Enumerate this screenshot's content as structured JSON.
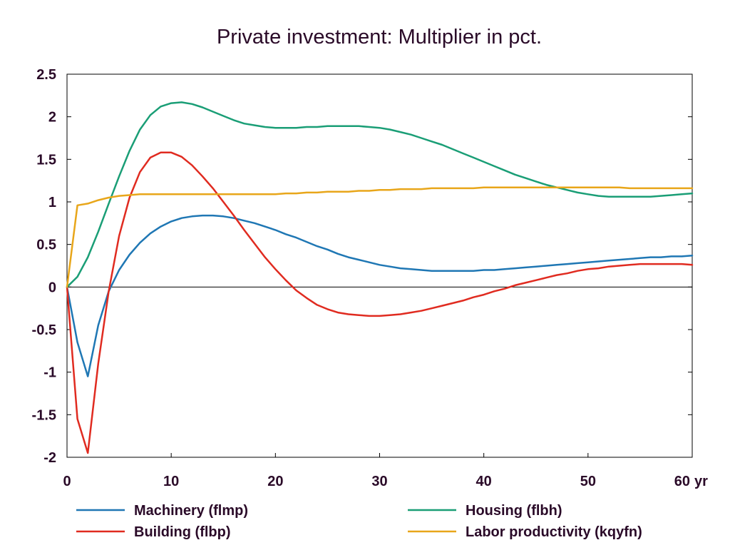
{
  "chart_data": {
    "type": "line",
    "title": "Private investment: Multiplier in pct.",
    "x_unit_label": "yr",
    "xlim": [
      0,
      60
    ],
    "ylim": [
      -2,
      2.5
    ],
    "x_ticks": [
      "0",
      "10",
      "20",
      "30",
      "40",
      "50",
      "60"
    ],
    "y_ticks": [
      "2.5",
      "2",
      "1.5",
      "1",
      "0.5",
      "0",
      "-0.5",
      "-1",
      "-1.5",
      "-2"
    ],
    "zero_line": true,
    "grid": false,
    "legend_position": "bottom",
    "x": [
      0,
      1,
      2,
      3,
      4,
      5,
      6,
      7,
      8,
      9,
      10,
      11,
      12,
      13,
      14,
      15,
      16,
      17,
      18,
      19,
      20,
      21,
      22,
      23,
      24,
      25,
      26,
      27,
      28,
      29,
      30,
      31,
      32,
      33,
      34,
      35,
      36,
      37,
      38,
      39,
      40,
      41,
      42,
      43,
      44,
      45,
      46,
      47,
      48,
      49,
      50,
      51,
      52,
      53,
      54,
      55,
      56,
      57,
      58,
      59,
      60
    ],
    "series": [
      {
        "name": "Machinery (flmp)",
        "color": "#1f77b4",
        "values": [
          0,
          -0.65,
          -1.05,
          -0.45,
          -0.05,
          0.2,
          0.38,
          0.52,
          0.63,
          0.71,
          0.77,
          0.81,
          0.83,
          0.84,
          0.84,
          0.83,
          0.81,
          0.78,
          0.75,
          0.71,
          0.67,
          0.62,
          0.58,
          0.53,
          0.48,
          0.44,
          0.39,
          0.35,
          0.32,
          0.29,
          0.26,
          0.24,
          0.22,
          0.21,
          0.2,
          0.19,
          0.19,
          0.19,
          0.19,
          0.19,
          0.2,
          0.2,
          0.21,
          0.22,
          0.23,
          0.24,
          0.25,
          0.26,
          0.27,
          0.28,
          0.29,
          0.3,
          0.31,
          0.32,
          0.33,
          0.34,
          0.35,
          0.35,
          0.36,
          0.36,
          0.37
        ]
      },
      {
        "name": "Building (flbp)",
        "color": "#e02b20",
        "values": [
          0,
          -1.55,
          -1.95,
          -0.9,
          -0.05,
          0.6,
          1.05,
          1.35,
          1.52,
          1.58,
          1.58,
          1.53,
          1.43,
          1.3,
          1.16,
          1.0,
          0.84,
          0.67,
          0.51,
          0.35,
          0.21,
          0.08,
          -0.04,
          -0.13,
          -0.21,
          -0.26,
          -0.3,
          -0.32,
          -0.33,
          -0.34,
          -0.34,
          -0.33,
          -0.32,
          -0.3,
          -0.28,
          -0.25,
          -0.22,
          -0.19,
          -0.16,
          -0.12,
          -0.09,
          -0.05,
          -0.02,
          0.02,
          0.05,
          0.08,
          0.11,
          0.14,
          0.16,
          0.19,
          0.21,
          0.22,
          0.24,
          0.25,
          0.26,
          0.27,
          0.27,
          0.27,
          0.27,
          0.27,
          0.26
        ]
      },
      {
        "name": "Housing (flbh)",
        "color": "#1a9e76",
        "values": [
          0,
          0.12,
          0.35,
          0.65,
          0.98,
          1.3,
          1.6,
          1.85,
          2.02,
          2.12,
          2.16,
          2.17,
          2.15,
          2.11,
          2.06,
          2.01,
          1.96,
          1.92,
          1.9,
          1.88,
          1.87,
          1.87,
          1.87,
          1.88,
          1.88,
          1.89,
          1.89,
          1.89,
          1.89,
          1.88,
          1.87,
          1.85,
          1.82,
          1.79,
          1.75,
          1.71,
          1.67,
          1.62,
          1.57,
          1.52,
          1.47,
          1.42,
          1.37,
          1.32,
          1.28,
          1.24,
          1.2,
          1.17,
          1.14,
          1.11,
          1.09,
          1.07,
          1.06,
          1.06,
          1.06,
          1.06,
          1.06,
          1.07,
          1.08,
          1.09,
          1.1
        ]
      },
      {
        "name": "Labor productivity (kqyfn)",
        "color": "#e8a61a",
        "values": [
          0,
          0.96,
          0.98,
          1.02,
          1.05,
          1.07,
          1.08,
          1.09,
          1.09,
          1.09,
          1.09,
          1.09,
          1.09,
          1.09,
          1.09,
          1.09,
          1.09,
          1.09,
          1.09,
          1.09,
          1.09,
          1.1,
          1.1,
          1.11,
          1.11,
          1.12,
          1.12,
          1.12,
          1.13,
          1.13,
          1.14,
          1.14,
          1.15,
          1.15,
          1.15,
          1.16,
          1.16,
          1.16,
          1.16,
          1.16,
          1.17,
          1.17,
          1.17,
          1.17,
          1.17,
          1.17,
          1.17,
          1.17,
          1.17,
          1.17,
          1.17,
          1.17,
          1.17,
          1.17,
          1.16,
          1.16,
          1.16,
          1.16,
          1.16,
          1.16,
          1.16
        ]
      }
    ]
  }
}
